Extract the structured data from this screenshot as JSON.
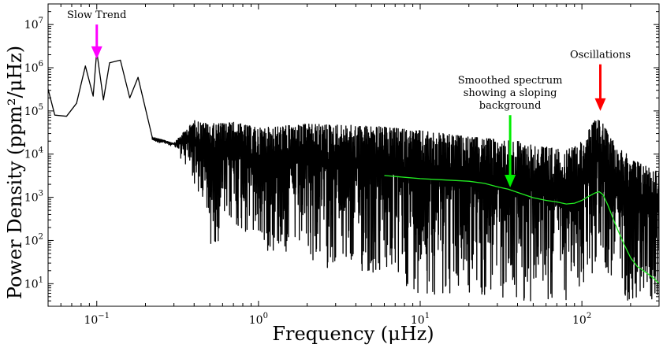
{
  "chart_data": {
    "type": "line",
    "title": "",
    "xlabel": "Frequency (μHz)",
    "ylabel": "Power Density (ppm²/μHz)",
    "x_scale": "log",
    "y_scale": "log",
    "xlim": [
      0.05,
      300
    ],
    "ylim": [
      3,
      30000000
    ],
    "x_ticks": [
      {
        "value": 0.1,
        "base": "10",
        "exp": "−1"
      },
      {
        "value": 1,
        "base": "10",
        "exp": "0"
      },
      {
        "value": 10,
        "base": "10",
        "exp": "1"
      },
      {
        "value": 100,
        "base": "10",
        "exp": "2"
      }
    ],
    "y_ticks": [
      {
        "value": 10,
        "base": "10",
        "exp": "1"
      },
      {
        "value": 100,
        "base": "10",
        "exp": "2"
      },
      {
        "value": 1000,
        "base": "10",
        "exp": "3"
      },
      {
        "value": 10000,
        "base": "10",
        "exp": "4"
      },
      {
        "value": 100000,
        "base": "10",
        "exp": "5"
      },
      {
        "value": 1000000,
        "base": "10",
        "exp": "6"
      },
      {
        "value": 10000000,
        "base": "10",
        "exp": "7"
      }
    ],
    "grid": false,
    "legend": "none",
    "series": [
      {
        "color": "#000000",
        "line_width": 1.3,
        "envelope_upper": [
          [
            0.05,
            320000
          ],
          [
            0.055,
            80000
          ],
          [
            0.065,
            75000
          ],
          [
            0.075,
            150000
          ],
          [
            0.085,
            1100000
          ],
          [
            0.095,
            220000
          ],
          [
            0.1,
            2400000
          ],
          [
            0.11,
            180000
          ],
          [
            0.12,
            1300000
          ],
          [
            0.14,
            1500000
          ],
          [
            0.16,
            200000
          ],
          [
            0.18,
            600000
          ],
          [
            0.22,
            25000
          ],
          [
            0.3,
            18000
          ],
          [
            0.4,
            60000
          ],
          [
            0.5,
            50000
          ],
          [
            0.7,
            55000
          ],
          [
            1,
            40000
          ],
          [
            2,
            50000
          ],
          [
            5,
            45000
          ],
          [
            10,
            35000
          ],
          [
            20,
            25000
          ],
          [
            40,
            20000
          ],
          [
            80,
            12000
          ],
          [
            100,
            20000
          ],
          [
            120,
            60000
          ],
          [
            130,
            65000
          ],
          [
            150,
            25000
          ],
          [
            200,
            8000
          ],
          [
            300,
            4000
          ]
        ],
        "envelope_lower": [
          [
            0.05,
            320000
          ],
          [
            0.055,
            80000
          ],
          [
            0.065,
            75000
          ],
          [
            0.075,
            150000
          ],
          [
            0.085,
            300000
          ],
          [
            0.095,
            150000
          ],
          [
            0.1,
            500000
          ],
          [
            0.11,
            150000
          ],
          [
            0.12,
            300000
          ],
          [
            0.14,
            200000
          ],
          [
            0.16,
            100000
          ],
          [
            0.18,
            120000
          ],
          [
            0.22,
            20000
          ],
          [
            0.3,
            15000
          ],
          [
            0.4,
            2000
          ],
          [
            0.5,
            60
          ],
          [
            0.7,
            200
          ],
          [
            1,
            60
          ],
          [
            2,
            30
          ],
          [
            5,
            12
          ],
          [
            10,
            6
          ],
          [
            20,
            4
          ],
          [
            40,
            3.5
          ],
          [
            80,
            3.5
          ],
          [
            100,
            5
          ],
          [
            120,
            20
          ],
          [
            130,
            50
          ],
          [
            150,
            8
          ],
          [
            200,
            3.5
          ],
          [
            300,
            3.5
          ]
        ]
      },
      {
        "color": "#22ee22",
        "line_width": 1.3,
        "points": [
          [
            6,
            3200
          ],
          [
            8,
            2900
          ],
          [
            10,
            2700
          ],
          [
            15,
            2500
          ],
          [
            20,
            2350
          ],
          [
            25,
            2100
          ],
          [
            30,
            1750
          ],
          [
            35,
            1550
          ],
          [
            40,
            1300
          ],
          [
            50,
            980
          ],
          [
            60,
            850
          ],
          [
            70,
            780
          ],
          [
            80,
            700
          ],
          [
            90,
            730
          ],
          [
            100,
            850
          ],
          [
            110,
            1050
          ],
          [
            120,
            1250
          ],
          [
            128,
            1350
          ],
          [
            135,
            1150
          ],
          [
            145,
            650
          ],
          [
            160,
            250
          ],
          [
            180,
            90
          ],
          [
            200,
            40
          ],
          [
            220,
            25
          ],
          [
            250,
            18
          ],
          [
            280,
            13
          ],
          [
            300,
            10
          ]
        ]
      }
    ],
    "annotations": [
      {
        "lines": [
          "Slow Trend"
        ],
        "color": "#ff00ff",
        "x": 0.1,
        "y_top": 10000000,
        "y_tip": 1600000
      },
      {
        "lines": [
          "Smoothed spectrum",
          "showing a sloping",
          "background"
        ],
        "color": "#00ee00",
        "x": 36,
        "y_top": 80000,
        "y_tip": 1700
      },
      {
        "lines": [
          "Oscillations"
        ],
        "color": "#ff0000",
        "x": 130,
        "y_top": 1200000,
        "y_tip": 100000
      }
    ]
  }
}
